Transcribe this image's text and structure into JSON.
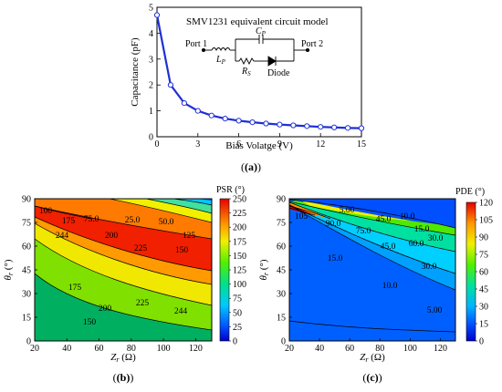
{
  "chart_data": [
    {
      "type": "line",
      "inset_title": "SMV1231 equivalent circuit model",
      "xlabel": "Bias Volatge (V)",
      "ylabel": "Capacitance (pF)",
      "xlim": [
        0,
        15
      ],
      "ylim": [
        0,
        5
      ],
      "xticks": [
        "0",
        "3",
        "6",
        "9",
        "12",
        "15"
      ],
      "yticks": [
        "0",
        "1",
        "2",
        "3",
        "4",
        "5"
      ],
      "x": [
        0,
        1,
        2,
        3,
        4,
        5,
        6,
        7,
        8,
        9,
        10,
        11,
        12,
        13,
        14,
        15
      ],
      "values": [
        4.7,
        2.0,
        1.3,
        1.0,
        0.82,
        0.7,
        0.62,
        0.56,
        0.51,
        0.47,
        0.44,
        0.41,
        0.38,
        0.36,
        0.34,
        0.33
      ],
      "line_color": "#1f2fd6",
      "circuit": {
        "port1": "Port 1",
        "port2": "Port 2",
        "lp": "L",
        "lp_sub": "P",
        "cp": "C",
        "cp_sub": "P",
        "rs": "R",
        "rs_sub": "S",
        "diode": "Diode"
      },
      "caption": "(a)"
    },
    {
      "type": "heatmap",
      "colorbar_title": "PSR (°)",
      "colorbar_ticks": [
        "0",
        "25",
        "50",
        "75",
        "100",
        "125",
        "150",
        "175",
        "200",
        "225",
        "250"
      ],
      "vmin": 0,
      "vmax": 250,
      "xlabel_main": "Z",
      "xlabel_sub": "r",
      "xlabel_unit": " (Ω)",
      "ylabel_main": "θ",
      "ylabel_sub": "r",
      "ylabel_unit": " (°)",
      "xlim": [
        20,
        130
      ],
      "ylim": [
        0,
        90
      ],
      "xticks": [
        "20",
        "40",
        "60",
        "80",
        "100",
        "120"
      ],
      "yticks": [
        "0",
        "15",
        "30",
        "45",
        "60",
        "75",
        "90"
      ],
      "contour_labels": [
        "100",
        "175",
        "75.0",
        "25.0",
        "50.0",
        "125",
        "150",
        "244",
        "200",
        "225",
        "225",
        "244",
        "175",
        "200",
        "150"
      ],
      "caption": "(b)"
    },
    {
      "type": "heatmap",
      "colorbar_title": "PDE (°)",
      "colorbar_ticks": [
        "0",
        "15",
        "30",
        "45",
        "60",
        "75",
        "90",
        "105",
        "120"
      ],
      "vmin": 0,
      "vmax": 120,
      "xlabel_main": "Z",
      "xlabel_sub": "r",
      "xlabel_unit": " (Ω)",
      "ylabel_main": "θ",
      "ylabel_sub": "r",
      "ylabel_unit": " (°)",
      "xlim": [
        20,
        130
      ],
      "ylim": [
        0,
        90
      ],
      "xticks": [
        "20",
        "40",
        "60",
        "80",
        "100",
        "120"
      ],
      "yticks": [
        "0",
        "15",
        "30",
        "45",
        "60",
        "75",
        "90"
      ],
      "contour_labels": [
        "5.00",
        "10.0",
        "105",
        "90.0",
        "15.0",
        "75.0",
        "45.0",
        "60.0",
        "30.0",
        "45.0",
        "15.0",
        "30.0",
        "10.0",
        "5.00"
      ],
      "caption": "(c)"
    }
  ]
}
